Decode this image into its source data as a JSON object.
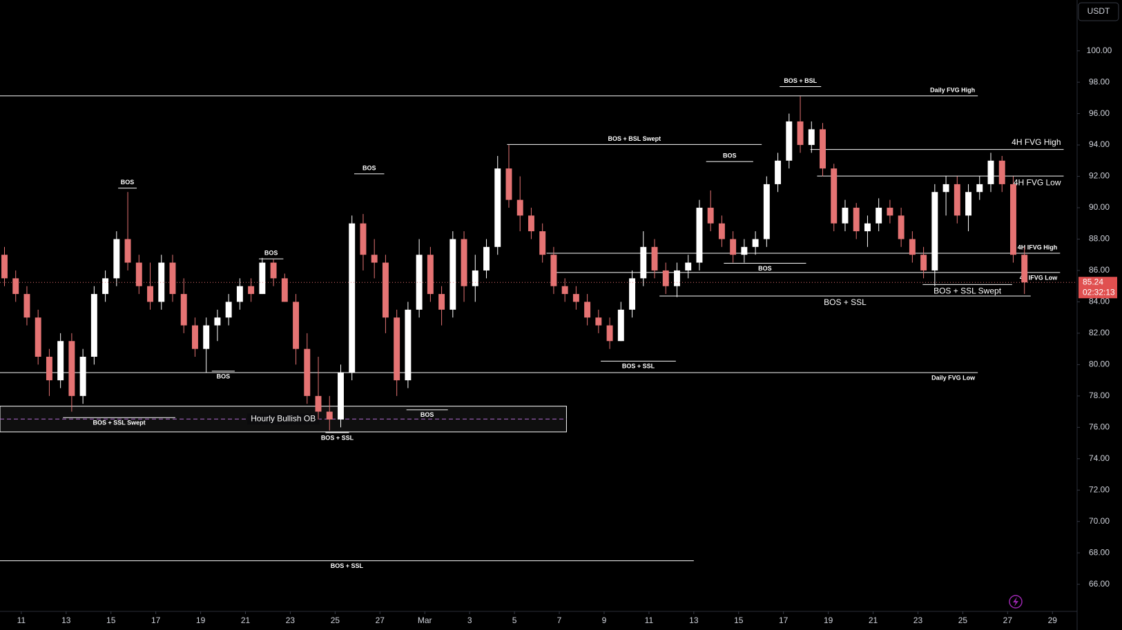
{
  "chart_data": {
    "type": "candlestick",
    "currency": "USDT",
    "up_color": "#ffffff",
    "down_color": "#e57373",
    "xlim": [
      10.05,
      58.1
    ],
    "ylim": [
      64.27,
      103.24
    ],
    "xticks": [
      {
        "value": 11,
        "label": "11"
      },
      {
        "value": 13,
        "label": "13"
      },
      {
        "value": 15,
        "label": "15"
      },
      {
        "value": 17,
        "label": "17"
      },
      {
        "value": 19,
        "label": "19"
      },
      {
        "value": 21,
        "label": "21"
      },
      {
        "value": 23,
        "label": "23"
      },
      {
        "value": 25,
        "label": "25"
      },
      {
        "value": 27,
        "label": "27"
      },
      {
        "value": 29,
        "label": "Mar"
      },
      {
        "value": 31,
        "label": "3"
      },
      {
        "value": 33,
        "label": "5"
      },
      {
        "value": 35,
        "label": "7"
      },
      {
        "value": 37,
        "label": "9"
      },
      {
        "value": 39,
        "label": "11"
      },
      {
        "value": 41,
        "label": "13"
      },
      {
        "value": 43,
        "label": "15"
      },
      {
        "value": 45,
        "label": "17"
      },
      {
        "value": 47,
        "label": "19"
      },
      {
        "value": 49,
        "label": "21"
      },
      {
        "value": 51,
        "label": "23"
      },
      {
        "value": 53,
        "label": "25"
      },
      {
        "value": 55,
        "label": "27"
      },
      {
        "value": 57,
        "label": "29"
      }
    ],
    "yticks": [
      {
        "value": 66,
        "label": "66.00"
      },
      {
        "value": 68,
        "label": "68.00"
      },
      {
        "value": 70,
        "label": "70.00"
      },
      {
        "value": 72,
        "label": "72.00"
      },
      {
        "value": 74,
        "label": "74.00"
      },
      {
        "value": 76,
        "label": "76.00"
      },
      {
        "value": 78,
        "label": "78.00"
      },
      {
        "value": 80,
        "label": "80.00"
      },
      {
        "value": 82,
        "label": "82.00"
      },
      {
        "value": 84,
        "label": "84.00"
      },
      {
        "value": 86,
        "label": "86.00"
      },
      {
        "value": 88,
        "label": "88.00"
      },
      {
        "value": 90,
        "label": "90.00"
      },
      {
        "value": 92,
        "label": "92.00"
      },
      {
        "value": 94,
        "label": "94.00"
      },
      {
        "value": 96,
        "label": "96.00"
      },
      {
        "value": 98,
        "label": "98.00"
      },
      {
        "value": 100,
        "label": "100.00"
      }
    ],
    "x": [
      10.25,
      10.75,
      11.25,
      11.75,
      12.25,
      12.75,
      13.25,
      13.75,
      14.25,
      14.75,
      15.25,
      15.75,
      16.25,
      16.75,
      17.25,
      17.75,
      18.25,
      18.75,
      19.25,
      19.75,
      20.25,
      20.75,
      21.25,
      21.75,
      22.25,
      22.75,
      23.25,
      23.75,
      24.25,
      24.75,
      25.25,
      25.75,
      26.25,
      26.75,
      27.25,
      27.75,
      28.25,
      28.75,
      29.25,
      29.75,
      30.25,
      30.75,
      31.25,
      31.75,
      32.25,
      32.75,
      33.25,
      33.75,
      34.25,
      34.75,
      35.25,
      35.75,
      36.25,
      36.75,
      37.25,
      37.75,
      38.25,
      38.75,
      39.25,
      39.75,
      40.25,
      40.75,
      41.25,
      41.75,
      42.25,
      42.75,
      43.25,
      43.75,
      44.25,
      44.75,
      45.25,
      45.75,
      46.25,
      46.75,
      47.25,
      47.75,
      48.25,
      48.75,
      49.25,
      49.75,
      50.25,
      50.75,
      51.25,
      51.75,
      52.25,
      52.75,
      53.25,
      53.75,
      54.25,
      54.75,
      55.25,
      55.75
    ],
    "ohlc": [
      [
        87,
        87.5,
        85,
        85.5
      ],
      [
        85.5,
        86,
        84,
        84.5
      ],
      [
        84.5,
        85,
        82.5,
        83
      ],
      [
        83,
        83.5,
        80,
        80.5
      ],
      [
        80.5,
        81,
        78,
        79
      ],
      [
        79,
        82,
        78.5,
        81.5
      ],
      [
        81.5,
        82,
        77,
        78
      ],
      [
        78,
        81,
        77.5,
        80.5
      ],
      [
        80.5,
        85,
        80,
        84.5
      ],
      [
        84.5,
        86,
        84,
        85.5
      ],
      [
        85.5,
        88.5,
        85,
        88
      ],
      [
        88,
        91,
        86,
        86.5
      ],
      [
        86.5,
        87,
        84.5,
        85
      ],
      [
        85,
        86.5,
        83.5,
        84
      ],
      [
        84,
        87,
        83.5,
        86.5
      ],
      [
        86.5,
        87,
        84,
        84.5
      ],
      [
        84.5,
        85.5,
        82,
        82.5
      ],
      [
        82.5,
        83,
        80.5,
        81
      ],
      [
        81,
        83,
        79.5,
        82.5
      ],
      [
        82.5,
        83.5,
        81.5,
        83
      ],
      [
        83,
        84.5,
        82.5,
        84
      ],
      [
        84,
        85.5,
        83.5,
        85
      ],
      [
        85,
        85.5,
        84,
        84.5
      ],
      [
        84.5,
        86.8,
        84.5,
        86.5
      ],
      [
        86.5,
        86.7,
        85,
        85.5
      ],
      [
        85.5,
        85.8,
        84,
        84
      ],
      [
        84,
        84.5,
        80,
        81
      ],
      [
        81,
        82,
        77.5,
        78
      ],
      [
        78,
        80.5,
        76.5,
        77
      ],
      [
        77,
        78,
        75.8,
        76.5
      ],
      [
        76.5,
        80,
        76,
        79.5
      ],
      [
        79.5,
        89.5,
        79,
        89
      ],
      [
        89,
        89.6,
        86,
        87
      ],
      [
        87,
        88,
        85.5,
        86.5
      ],
      [
        86.5,
        87,
        82,
        83
      ],
      [
        83,
        83.5,
        78,
        79
      ],
      [
        79,
        84,
        78.5,
        83.5
      ],
      [
        83.5,
        88,
        83,
        87
      ],
      [
        87,
        87.5,
        84,
        84.5
      ],
      [
        84.5,
        85,
        82.5,
        83.5
      ],
      [
        83.5,
        88.5,
        83,
        88
      ],
      [
        88,
        88.5,
        84,
        85
      ],
      [
        85,
        87,
        84,
        86
      ],
      [
        86,
        88,
        85.5,
        87.5
      ],
      [
        87.5,
        93.3,
        87,
        92.5
      ],
      [
        92.5,
        94,
        90,
        90.5
      ],
      [
        90.5,
        92,
        88.5,
        89.5
      ],
      [
        89.5,
        90,
        88,
        88.5
      ],
      [
        88.5,
        89,
        86.5,
        87
      ],
      [
        87,
        87.5,
        84.5,
        85
      ],
      [
        85,
        85.5,
        84,
        84.5
      ],
      [
        84.5,
        85,
        83.5,
        84
      ],
      [
        84,
        84.5,
        82.5,
        83
      ],
      [
        83,
        83.5,
        82,
        82.5
      ],
      [
        82.5,
        83,
        81,
        81.5
      ],
      [
        81.5,
        84,
        81.5,
        83.5
      ],
      [
        83.5,
        86,
        83,
        85.5
      ],
      [
        85.5,
        88.5,
        85,
        87.5
      ],
      [
        87.5,
        88,
        85.5,
        86
      ],
      [
        86,
        86.5,
        84.5,
        85
      ],
      [
        85,
        86.5,
        84.3,
        86
      ],
      [
        86,
        87,
        85.5,
        86.5
      ],
      [
        86.5,
        90.5,
        86,
        90
      ],
      [
        90,
        91.1,
        88.5,
        89
      ],
      [
        89,
        89.5,
        87.5,
        88
      ],
      [
        88,
        88.5,
        86.5,
        87
      ],
      [
        87,
        88,
        86.5,
        87.5
      ],
      [
        87.5,
        88.5,
        87,
        88
      ],
      [
        88,
        92,
        87.5,
        91.5
      ],
      [
        91.5,
        93.5,
        91,
        93
      ],
      [
        93,
        96,
        92.5,
        95.5
      ],
      [
        95.5,
        97.1,
        93.5,
        94
      ],
      [
        94,
        95.5,
        93.5,
        95
      ],
      [
        95,
        95.4,
        92,
        92.5
      ],
      [
        92.5,
        92.8,
        88.5,
        89
      ],
      [
        89,
        90.5,
        88.5,
        90
      ],
      [
        90,
        90.3,
        88,
        88.5
      ],
      [
        88.5,
        89.5,
        87.5,
        89
      ],
      [
        89,
        90.6,
        88.5,
        90
      ],
      [
        90,
        90.5,
        89,
        89.5
      ],
      [
        89.5,
        90,
        87.5,
        88
      ],
      [
        88,
        88.5,
        86.5,
        87
      ],
      [
        87,
        87.5,
        85.5,
        86
      ],
      [
        86,
        91.5,
        85,
        91
      ],
      [
        91,
        92,
        89.5,
        91.5
      ],
      [
        91.5,
        92,
        89,
        89.5
      ],
      [
        89.5,
        91.5,
        88.5,
        91
      ],
      [
        91,
        92,
        90.5,
        91.5
      ],
      [
        91.5,
        93.5,
        91,
        93
      ],
      [
        93,
        93.3,
        91,
        91.5
      ],
      [
        91.5,
        92,
        86.5,
        87
      ],
      [
        87,
        87.5,
        84.5,
        85.24
      ]
    ],
    "last_price": 85.24,
    "last_price_label": "85.24",
    "countdown": "02:32:13",
    "levels": [
      {
        "label": "Daily FVG High",
        "price": 97.13,
        "x": [
          10.05,
          53.67
        ]
      },
      {
        "label": "Daily FVG Low",
        "price": 79.49,
        "x": [
          10.05,
          53.67
        ]
      },
      {
        "label": "BOS + BSL",
        "price": 97.72,
        "x": [
          44.83,
          46.68
        ]
      },
      {
        "label": "BOS + BSL Swept",
        "price": 94.03,
        "x": [
          32.67,
          44.03
        ]
      },
      {
        "label": "4H FVG High",
        "price": 93.71,
        "x": [
          46.2,
          57.5
        ]
      },
      {
        "label": "4H FVG Low",
        "price": 92.02,
        "x": [
          46.5,
          57.5
        ]
      },
      {
        "label": "BOS",
        "price": 92.94,
        "x": [
          41.55,
          43.65
        ]
      },
      {
        "label": "BOS",
        "price": 91.25,
        "x": [
          15.32,
          16.15
        ]
      },
      {
        "label": "BOS",
        "price": 92.16,
        "x": [
          25.85,
          27.19
        ]
      },
      {
        "label": "BOS",
        "price": 86.74,
        "x": [
          21.6,
          22.69
        ]
      },
      {
        "label": "4H IFVG High",
        "price": 87.1,
        "x": [
          34.43,
          57.34
        ]
      },
      {
        "label": "BOS",
        "price": 86.46,
        "x": [
          42.34,
          46.01
        ]
      },
      {
        "label": "4h IFVG Low",
        "price": 85.87,
        "x": [
          34.68,
          57.34
        ]
      },
      {
        "label": "BOS + SSL Swept",
        "price": 85.1,
        "x": [
          51.21,
          55.2
        ]
      },
      {
        "label": "BOS + SSL",
        "price": 84.37,
        "x": [
          39.47,
          56.03
        ]
      },
      {
        "label": "BOS",
        "price": 79.58,
        "x": [
          19.5,
          20.52
        ]
      },
      {
        "label": "BOS + SSL",
        "price": 80.22,
        "x": [
          36.85,
          40.2
        ]
      },
      {
        "label": "BOS",
        "price": 77.12,
        "x": [
          28.18,
          30.03
        ]
      },
      {
        "label": "BOS + SSL Swept",
        "price": 76.62,
        "x": [
          12.86,
          17.87
        ]
      },
      {
        "label": "BOS + SSL",
        "price": 75.66,
        "x": [
          24.57,
          25.62
        ]
      },
      {
        "label": "BOS + SSL",
        "price": 67.5,
        "x": [
          10.05,
          41.0
        ]
      }
    ],
    "zone": {
      "label": "Hourly Bullish OB",
      "top": 77.35,
      "bottom": 75.71,
      "mid": 76.53,
      "x": [
        10.05,
        35.32
      ]
    }
  }
}
